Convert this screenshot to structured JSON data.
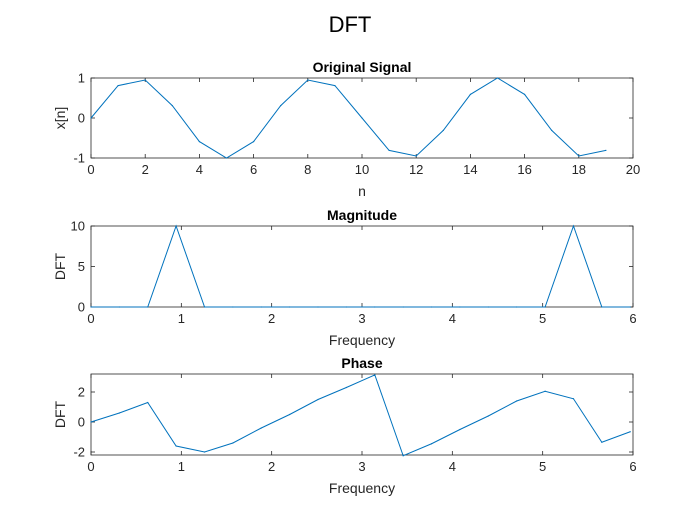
{
  "figure": {
    "title": "DFT"
  },
  "line_color": "#0072BD",
  "chart_data": [
    {
      "type": "line",
      "title": "Original Signal",
      "xlabel": "n",
      "ylabel": "x[n]",
      "xlim": [
        0,
        20
      ],
      "ylim": [
        -1,
        1
      ],
      "xticks": [
        0,
        2,
        4,
        6,
        8,
        10,
        12,
        14,
        16,
        18,
        20
      ],
      "yticks": [
        -1,
        0,
        1
      ],
      "grid": false,
      "x": [
        0,
        1,
        2,
        3,
        4,
        5,
        6,
        7,
        8,
        9,
        10,
        11,
        12,
        13,
        14,
        15,
        16,
        17,
        18,
        19
      ],
      "y": [
        0,
        0.81,
        0.95,
        0.31,
        -0.59,
        -1.0,
        -0.59,
        0.31,
        0.95,
        0.81,
        0.0,
        -0.81,
        -0.95,
        -0.31,
        0.59,
        1.0,
        0.59,
        -0.31,
        -0.95,
        -0.81
      ]
    },
    {
      "type": "line",
      "title": "Magnitude",
      "xlabel": "Frequency",
      "ylabel": "DFT",
      "xlim": [
        0,
        6
      ],
      "ylim": [
        0,
        10
      ],
      "xticks": [
        0,
        1,
        2,
        3,
        4,
        5,
        6
      ],
      "yticks": [
        0,
        5,
        10
      ],
      "grid": false,
      "x": [
        0,
        0.314,
        0.628,
        0.942,
        1.257,
        1.571,
        1.885,
        2.199,
        2.513,
        2.827,
        3.142,
        3.456,
        3.77,
        4.084,
        4.398,
        4.712,
        5.027,
        5.341,
        5.655,
        5.969
      ],
      "y": [
        0,
        0,
        0,
        10,
        0,
        0,
        0,
        0,
        0,
        0,
        0,
        0,
        0,
        0,
        0,
        0,
        0,
        10,
        0,
        0
      ]
    },
    {
      "type": "line",
      "title": "Phase",
      "xlabel": "Frequency",
      "ylabel": "DFT",
      "xlim": [
        0,
        6
      ],
      "ylim": [
        -2.2,
        3.2
      ],
      "xticks": [
        0,
        1,
        2,
        3,
        4,
        5,
        6
      ],
      "yticks": [
        -2,
        0,
        2
      ],
      "grid": false,
      "x": [
        0,
        0.314,
        0.628,
        0.942,
        1.257,
        1.571,
        1.885,
        2.199,
        2.513,
        2.827,
        3.142,
        3.456,
        3.77,
        4.084,
        4.398,
        4.712,
        5.027,
        5.341,
        5.655,
        5.969
      ],
      "y": [
        0,
        0.6,
        1.3,
        -1.6,
        -2.0,
        -1.4,
        -0.4,
        0.5,
        1.5,
        2.3,
        3.14,
        -2.25,
        -1.45,
        -0.5,
        0.4,
        1.4,
        2.05,
        1.55,
        -1.35,
        -0.65
      ]
    }
  ]
}
